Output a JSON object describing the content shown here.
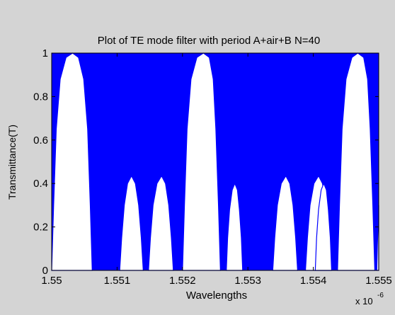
{
  "window": {
    "background_color": "#d4d4d4"
  },
  "chart_data": {
    "type": "line",
    "title": "Plot of TE mode filter with period A+air+B N=40",
    "xlabel": "Wavelengths",
    "ylabel": "Transmittance(T)",
    "x_exponent_label": "x 10",
    "x_exponent_power": "-6",
    "xlim": [
      1.55,
      1.555
    ],
    "ylim": [
      0,
      1
    ],
    "xticks": [
      1.55,
      1.551,
      1.552,
      1.553,
      1.554,
      1.555
    ],
    "xtick_labels": [
      "1.55",
      "1.551",
      "1.552",
      "1.553",
      "1.554",
      "1.555"
    ],
    "yticks": [
      0,
      0.2,
      0.4,
      0.6,
      0.8,
      1
    ],
    "ytick_labels": [
      "0",
      "0.2",
      "0.4",
      "0.6",
      "0.8",
      "1"
    ],
    "grid": false,
    "series_color": "#0000ff",
    "passbands": [
      {
        "x": [
          1.55,
          1.55003,
          1.55007,
          1.55013,
          1.55022,
          1.55032,
          1.55041,
          1.55049,
          1.55055,
          1.55059,
          1.55062
        ],
        "y": [
          0,
          0.3,
          0.65,
          0.88,
          0.98,
          1.0,
          0.98,
          0.88,
          0.65,
          0.3,
          0
        ]
      },
      {
        "x": [
          1.55104,
          1.55107,
          1.55111,
          1.55116,
          1.55122,
          1.55128,
          1.55133,
          1.55137,
          1.5514
        ],
        "y": [
          0,
          0.15,
          0.3,
          0.4,
          0.435,
          0.4,
          0.3,
          0.15,
          0
        ]
      },
      {
        "x": [
          1.55148,
          1.55151,
          1.55155,
          1.55161,
          1.55168,
          1.55174,
          1.55179,
          1.55183,
          1.55186
        ],
        "y": [
          0,
          0.15,
          0.3,
          0.4,
          0.435,
          0.4,
          0.3,
          0.15,
          0
        ]
      },
      {
        "x": [
          1.552,
          1.55203,
          1.55207,
          1.55213,
          1.55222,
          1.55232,
          1.55241,
          1.55247,
          1.55251,
          1.55255,
          1.55258
        ],
        "y": [
          0,
          0.3,
          0.65,
          0.88,
          0.98,
          1.0,
          0.98,
          0.88,
          0.65,
          0.3,
          0
        ]
      },
      {
        "x": [
          1.55267,
          1.55269,
          1.55272,
          1.55276,
          1.5528,
          1.55284,
          1.55287,
          1.5529,
          1.55292
        ],
        "y": [
          0,
          0.15,
          0.28,
          0.37,
          0.4,
          0.37,
          0.28,
          0.15,
          0
        ]
      },
      {
        "x": [
          1.55338,
          1.55341,
          1.55345,
          1.55351,
          1.55358,
          1.55364,
          1.55369,
          1.55373,
          1.55376
        ],
        "y": [
          0,
          0.15,
          0.3,
          0.4,
          0.435,
          0.4,
          0.3,
          0.15,
          0
        ]
      },
      {
        "x": [
          1.55388,
          1.55391,
          1.55395,
          1.55401,
          1.55408,
          1.55414,
          1.55419,
          1.55423,
          1.55426
        ],
        "y": [
          0,
          0.15,
          0.3,
          0.4,
          0.435,
          0.4,
          0.3,
          0.15,
          0
        ]
      },
      {
        "x": [
          1.55403,
          1.55405,
          1.55408,
          1.55412,
          1.55416,
          1.5542,
          1.55423,
          1.55426,
          1.55428
        ],
        "y": [
          0,
          0.15,
          0.28,
          0.37,
          0.4,
          0.37,
          0.28,
          0.15,
          0
        ]
      },
      {
        "x": [
          1.55437,
          1.5544,
          1.55444,
          1.5545,
          1.55459,
          1.55468,
          1.55477,
          1.55483,
          1.55487,
          1.55491,
          1.55494
        ],
        "y": [
          0,
          0.3,
          0.65,
          0.88,
          0.98,
          1.0,
          0.98,
          0.88,
          0.65,
          0.3,
          0
        ]
      },
      {
        "x": [
          1.55497,
          1.55498,
          1.555
        ],
        "y": [
          0,
          0.12,
          0.3
        ]
      }
    ]
  }
}
